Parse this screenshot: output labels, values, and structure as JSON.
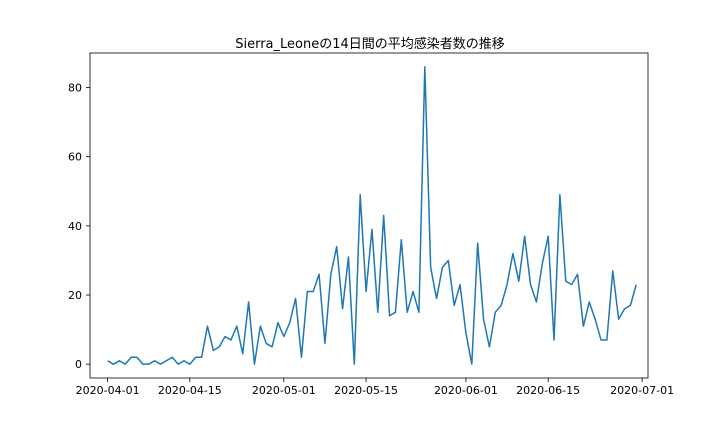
{
  "chart_data": {
    "type": "line",
    "title": "Sierra_Leoneの14日間の平均感染者数の推移",
    "xlabel": "",
    "ylabel": "",
    "x_start": "2020-04-01",
    "x_range": [
      "2020-03-29",
      "2020-07-02"
    ],
    "xticks": [
      {
        "date": "2020-04-01",
        "label": "2020-04-01"
      },
      {
        "date": "2020-04-15",
        "label": "2020-04-15"
      },
      {
        "date": "2020-05-01",
        "label": "2020-05-01"
      },
      {
        "date": "2020-05-15",
        "label": "2020-05-15"
      },
      {
        "date": "2020-06-01",
        "label": "2020-06-01"
      },
      {
        "date": "2020-06-15",
        "label": "2020-06-15"
      },
      {
        "date": "2020-07-01",
        "label": "2020-07-01"
      }
    ],
    "ylim": [
      -4,
      90
    ],
    "yticks": [
      {
        "value": 0,
        "label": "0"
      },
      {
        "value": 20,
        "label": "20"
      },
      {
        "value": 40,
        "label": "40"
      },
      {
        "value": 60,
        "label": "60"
      },
      {
        "value": 80,
        "label": "80"
      }
    ],
    "grid": false,
    "series": [
      {
        "color": "#1f77b4",
        "values": [
          1,
          0,
          1,
          0,
          2,
          2,
          0,
          0,
          1,
          0,
          1,
          2,
          0,
          1,
          0,
          2,
          2,
          11,
          4,
          5,
          8,
          7,
          11,
          3,
          18,
          0,
          11,
          6,
          5,
          12,
          8,
          12,
          19,
          2,
          21,
          21,
          26,
          6,
          26,
          34,
          16,
          31,
          0,
          49,
          21,
          39,
          15,
          43,
          14,
          15,
          36,
          15,
          21,
          15,
          86,
          28,
          19,
          28,
          30,
          17,
          23,
          9,
          0,
          35,
          13,
          5,
          15,
          17,
          23,
          32,
          24,
          37,
          23,
          18,
          29,
          37,
          7,
          49,
          24,
          23,
          26,
          11,
          18,
          13,
          7,
          7,
          27,
          13,
          16,
          17,
          23
        ]
      }
    ]
  }
}
